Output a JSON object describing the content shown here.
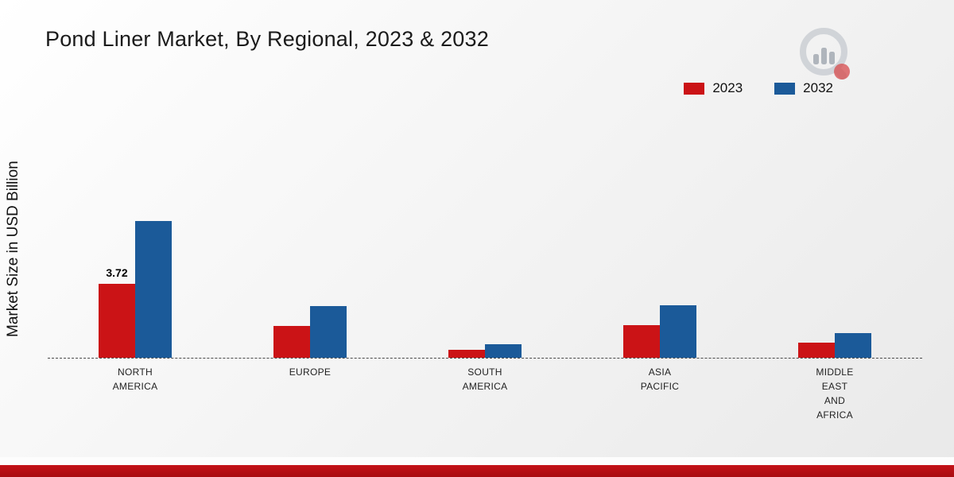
{
  "title": "Pond Liner Market, By Regional, 2023 & 2032",
  "ylabel": "Market Size in USD Billion",
  "legend": {
    "items": [
      {
        "label": "2023",
        "color": "#cb1316"
      },
      {
        "label": "2032",
        "color": "#1b5a99"
      }
    ]
  },
  "brand": {
    "logo": "market-research-logo"
  },
  "footer": {
    "bar_color": "#b90f13"
  },
  "chart_data": {
    "type": "bar",
    "title": "Pond Liner Market, By Regional, 2023 & 2032",
    "xlabel": "",
    "ylabel": "Market Size in USD Billion",
    "categories": [
      "NORTH AMERICA",
      "EUROPE",
      "SOUTH AMERICA",
      "ASIA PACIFIC",
      "MIDDLE EAST AND AFRICA"
    ],
    "category_display": [
      "NORTH\nAMERICA",
      "EUROPE",
      "SOUTH\nAMERICA",
      "ASIA\nPACIFIC",
      "MIDDLE\nEAST\nAND\nAFRICA"
    ],
    "series": [
      {
        "name": "2023",
        "color": "#cb1316",
        "values": [
          3.72,
          1.6,
          0.4,
          1.65,
          0.75
        ]
      },
      {
        "name": "2032",
        "color": "#1b5a99",
        "values": [
          6.9,
          2.6,
          0.7,
          2.65,
          1.25
        ]
      }
    ],
    "annotations": [
      {
        "series_index": 0,
        "category_index": 0,
        "text": "3.72"
      }
    ],
    "ylim": [
      0,
      12
    ],
    "grid": false,
    "baseline": "dashed",
    "legend_position": "top-right"
  }
}
